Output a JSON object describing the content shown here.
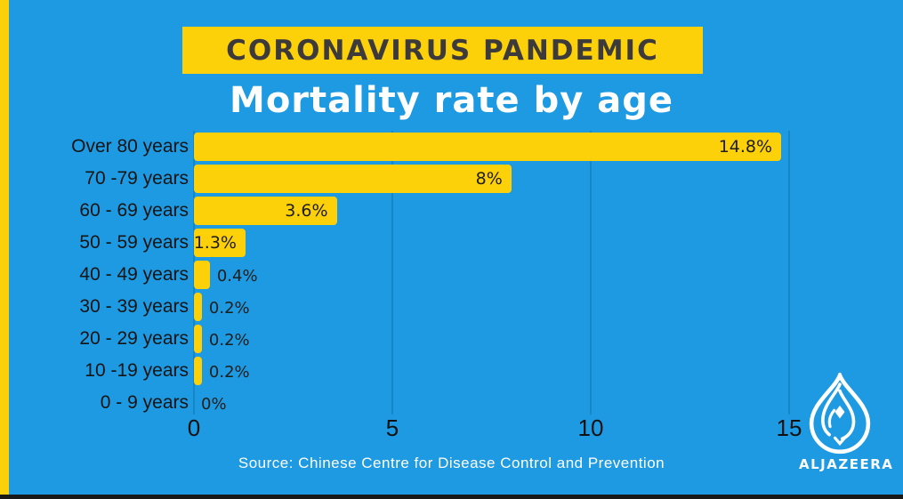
{
  "page": {
    "colors": {
      "bg": "#1e9ae2",
      "yellow": "#fdd10a",
      "dark-text": "#3d3a3c",
      "dark-bar": "#191919",
      "grid": "#1786c7"
    }
  },
  "header": {
    "title": "CORONAVIRUS PANDEMIC",
    "subtitle": "Mortality rate by age"
  },
  "chart_data": {
    "type": "bar",
    "orientation": "horizontal",
    "title": "Mortality rate by age",
    "categories": [
      "Over 80 years",
      "70 -79 years",
      "60 - 69 years",
      "50 - 59 years",
      "40 - 49 years",
      "30 - 39 years",
      "20 - 29 years",
      "10 -19 years",
      "0 - 9 years"
    ],
    "values": [
      14.8,
      8,
      3.6,
      1.3,
      0.4,
      0.2,
      0.2,
      0.2,
      0
    ],
    "value_labels": [
      "14.8%",
      "8%",
      "3.6%",
      "1.3%",
      "0.4%",
      "0.2%",
      "0.2%",
      "0.2%",
      "0%"
    ],
    "x_ticks": [
      "0",
      "5",
      "10",
      "15"
    ],
    "x_tick_values": [
      0,
      5,
      10,
      15
    ],
    "xlim": [
      0,
      15.5
    ],
    "bar_color": "#fdd10a",
    "grid": true,
    "legend": false
  },
  "footer": {
    "source": "Source: Chinese Centre for Disease Control and Prevention"
  },
  "branding": {
    "logo_icon": "aljazeera-flame-icon",
    "logo_text": "ALJAZEERA"
  }
}
